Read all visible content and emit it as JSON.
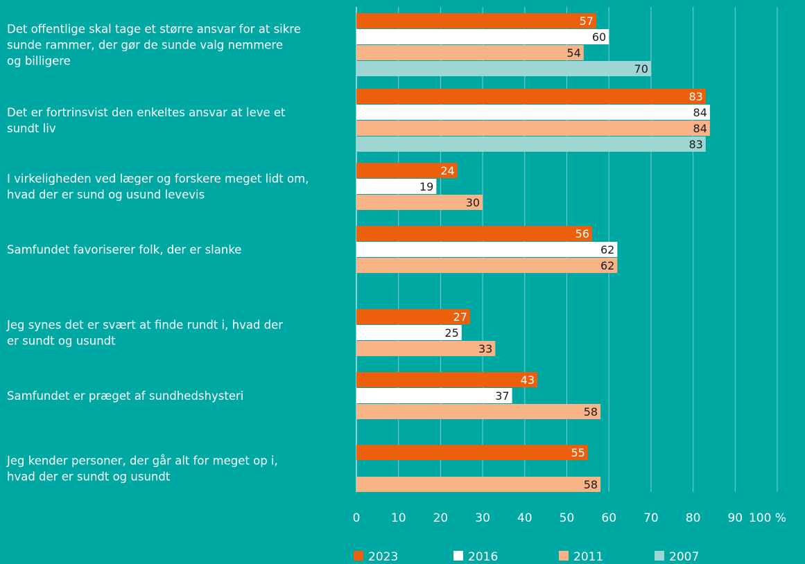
{
  "chart_data": {
    "type": "bar",
    "orientation": "horizontal",
    "categories": [
      [
        "Det offentlige skal tage et større ansvar for at sikre",
        "sunde rammer, der gør de sunde valg nemmere",
        "og billigere"
      ],
      [
        "Det er fortrinsvist den enkeltes ansvar at leve et",
        "sundt liv"
      ],
      [
        "I virkeligheden ved læger og forskere meget lidt om,",
        "hvad der er sund og usund levevis"
      ],
      [
        "Samfundet favoriserer folk, der er slanke"
      ],
      [
        "Jeg synes det er svært at finde rundt i, hvad der",
        "er sundt og usundt"
      ],
      [
        "Samfundet er præget af sundhedshysteri"
      ],
      [
        "Jeg kender personer, der går alt for meget op i,",
        "hvad der er sundt og usundt"
      ]
    ],
    "series": [
      {
        "name": "2023",
        "color": "#ec5f0c",
        "label_color": "#ffffff",
        "values": [
          57,
          83,
          24,
          56,
          27,
          43,
          55
        ]
      },
      {
        "name": "2016",
        "color": "#ffffff",
        "label_color": "#1a1a1a",
        "values": [
          60,
          84,
          19,
          62,
          25,
          37,
          null
        ]
      },
      {
        "name": "2011",
        "color": "#f8b487",
        "label_color": "#1a1a1a",
        "values": [
          54,
          84,
          30,
          62,
          33,
          58,
          58
        ]
      },
      {
        "name": "2007",
        "color": "#9ed6d3",
        "label_color": "#1a1a1a",
        "values": [
          70,
          83,
          null,
          null,
          null,
          null,
          null
        ]
      }
    ],
    "xticks": [
      "0",
      "10",
      "20",
      "30",
      "40",
      "50",
      "60",
      "70",
      "80",
      "90",
      "100 %"
    ],
    "xlim": [
      0,
      100
    ],
    "grid": true,
    "legend_position": "bottom"
  }
}
